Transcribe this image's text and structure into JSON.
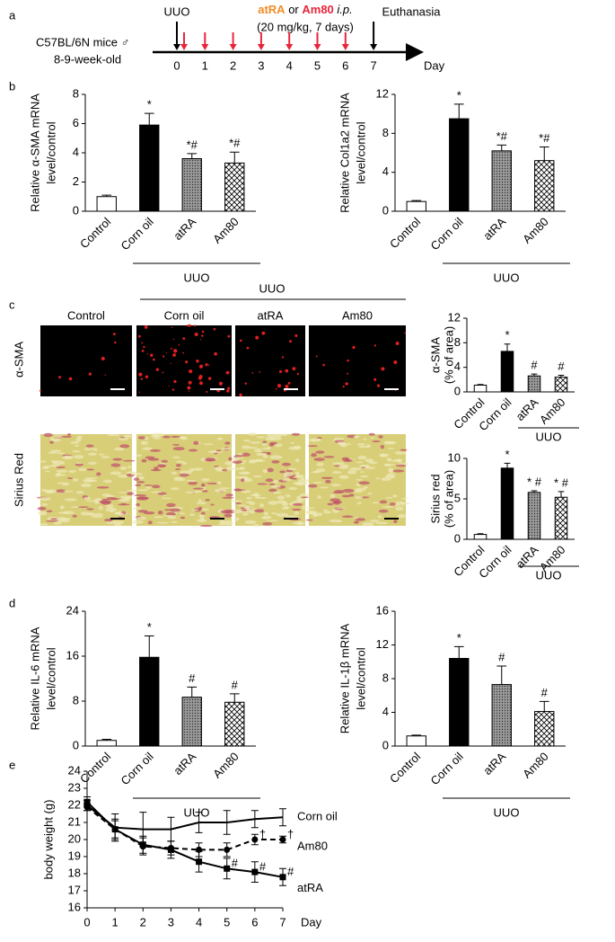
{
  "figure": {
    "panels": [
      "a",
      "b",
      "c",
      "d",
      "e"
    ],
    "timeline": {
      "start": "UUO",
      "drug1": "atRA",
      "or": "or",
      "drug2": "Am80",
      "route": "i.p.",
      "dose": "(20 mg/kg, 7 days)",
      "end": "Euthanasia",
      "mice": "C57BL/6N mice ♂",
      "age": "8-9-week-old",
      "days": [
        0,
        1,
        2,
        3,
        4,
        5,
        6,
        7
      ],
      "unit": "Day"
    },
    "histology": {
      "group": "UUO",
      "columns": [
        "Control",
        "Corn oil",
        "atRA",
        "Am80"
      ],
      "rows": [
        "α-SMA",
        "Sirius Red"
      ]
    }
  },
  "chart_data": [
    {
      "type": "bar",
      "ylabel": [
        "Relative α-SMA mRNA",
        "level/control"
      ],
      "categories": [
        "Control",
        "Corn oil",
        "atRA",
        "Am80"
      ],
      "values": [
        1,
        5.9,
        3.6,
        3.3
      ],
      "errors": [
        0.1,
        0.8,
        0.35,
        0.75
      ],
      "annotations": [
        null,
        "*",
        "*#",
        "*#"
      ],
      "fills": [
        "#ffffff",
        "#000000",
        "dots",
        "crosshatch"
      ],
      "ylim": [
        0,
        8
      ],
      "yticks": [
        0,
        2,
        4,
        6,
        8
      ],
      "group_label": "UUO"
    },
    {
      "type": "bar",
      "ylabel": [
        "Relative Col1a2 mRNA",
        "level/control"
      ],
      "categories": [
        "Control",
        "Corn oil",
        "atRA",
        "Am80"
      ],
      "values": [
        1,
        9.5,
        6.2,
        5.2
      ],
      "errors": [
        0.1,
        1.5,
        0.6,
        1.4
      ],
      "annotations": [
        null,
        "*",
        "*#",
        "*#"
      ],
      "fills": [
        "#ffffff",
        "#000000",
        "dots",
        "crosshatch"
      ],
      "ylim": [
        0,
        12
      ],
      "yticks": [
        0,
        4,
        8,
        12
      ],
      "group_label": "UUO"
    },
    {
      "type": "bar",
      "ylabel": [
        "α-SMA",
        "(% of area)"
      ],
      "categories": [
        "Control",
        "Corn oil",
        "atRA",
        "Am80"
      ],
      "values": [
        1.1,
        6.6,
        2.6,
        2.4
      ],
      "errors": [
        0.1,
        1.2,
        0.3,
        0.3
      ],
      "annotations": [
        null,
        "*",
        "#",
        "#"
      ],
      "fills": [
        "#ffffff",
        "#000000",
        "dots",
        "crosshatch"
      ],
      "ylim": [
        0,
        12
      ],
      "yticks": [
        0,
        4,
        8,
        12
      ],
      "group_label": "UUO"
    },
    {
      "type": "bar",
      "ylabel": [
        "Sirius red",
        "(% of area)"
      ],
      "categories": [
        "Control",
        "Corn oil",
        "atRA",
        "Am80"
      ],
      "values": [
        0.6,
        8.8,
        5.8,
        5.2
      ],
      "errors": [
        0.1,
        0.6,
        0.2,
        0.7
      ],
      "annotations": [
        null,
        "*",
        "* #",
        "* #"
      ],
      "fills": [
        "#ffffff",
        "#000000",
        "dots",
        "crosshatch"
      ],
      "ylim": [
        0,
        10
      ],
      "yticks": [
        0,
        5,
        10
      ],
      "group_label": "UUO"
    },
    {
      "type": "bar",
      "ylabel": [
        "Relative IL-6 mRNA",
        "level/control"
      ],
      "categories": [
        "Control",
        "Corn oil",
        "atRA",
        "Am80"
      ],
      "values": [
        1,
        15.8,
        8.7,
        7.8
      ],
      "errors": [
        0.2,
        3.8,
        1.8,
        1.5
      ],
      "annotations": [
        null,
        "*",
        "#",
        "#"
      ],
      "fills": [
        "#ffffff",
        "#000000",
        "dots",
        "crosshatch"
      ],
      "ylim": [
        0,
        24
      ],
      "yticks": [
        0,
        8,
        16,
        24
      ],
      "group_label": "UUO"
    },
    {
      "type": "bar",
      "ylabel": [
        "Relative IL-1β mRNA",
        "level/control"
      ],
      "categories": [
        "Control",
        "Corn oil",
        "atRA",
        "Am80"
      ],
      "values": [
        1.2,
        10.4,
        7.3,
        4.1
      ],
      "errors": [
        0.1,
        1.4,
        2.2,
        1.2
      ],
      "annotations": [
        null,
        "*",
        "#",
        "#"
      ],
      "fills": [
        "#ffffff",
        "#000000",
        "dots",
        "crosshatch"
      ],
      "ylim": [
        0,
        16
      ],
      "yticks": [
        0,
        4,
        8,
        12,
        16
      ],
      "group_label": "UUO"
    },
    {
      "type": "line",
      "ylabel": "body weight (g)",
      "xlabel": "Day",
      "x": [
        0,
        1,
        2,
        3,
        4,
        5,
        6,
        7
      ],
      "series": [
        {
          "name": "Corn oil",
          "color": "#000000",
          "values": [
            22.0,
            20.7,
            20.6,
            20.6,
            21.0,
            21.0,
            21.2,
            21.3
          ],
          "errors": [
            0.3,
            0.8,
            1.0,
            0.7,
            0.6,
            0.7,
            0.5,
            0.5
          ]
        },
        {
          "name": "Am80",
          "color": "#000000",
          "dash": true,
          "marker": "circle",
          "values": [
            21.9,
            20.6,
            19.6,
            19.5,
            19.4,
            19.4,
            20.0,
            20.0
          ],
          "errors": [
            0.2,
            0.6,
            0.5,
            0.4,
            0.4,
            0.4,
            0.3,
            0.2
          ],
          "point_labels": [
            null,
            null,
            null,
            null,
            null,
            null,
            "†",
            "†"
          ]
        },
        {
          "name": "atRA",
          "color": "#000000",
          "marker": "square",
          "values": [
            22.2,
            20.6,
            19.7,
            19.4,
            18.7,
            18.3,
            18.1,
            17.8
          ],
          "errors": [
            0.3,
            0.5,
            0.5,
            0.5,
            0.6,
            0.6,
            0.6,
            0.5
          ],
          "point_labels": [
            null,
            null,
            null,
            null,
            null,
            "#",
            "#",
            "#"
          ]
        }
      ],
      "xlim": [
        0,
        7
      ],
      "xticks": [
        0,
        1,
        2,
        3,
        4,
        5,
        6,
        7
      ],
      "ylim": [
        16,
        24
      ],
      "yticks": [
        16,
        17,
        18,
        19,
        20,
        21,
        22,
        23,
        24
      ]
    }
  ]
}
